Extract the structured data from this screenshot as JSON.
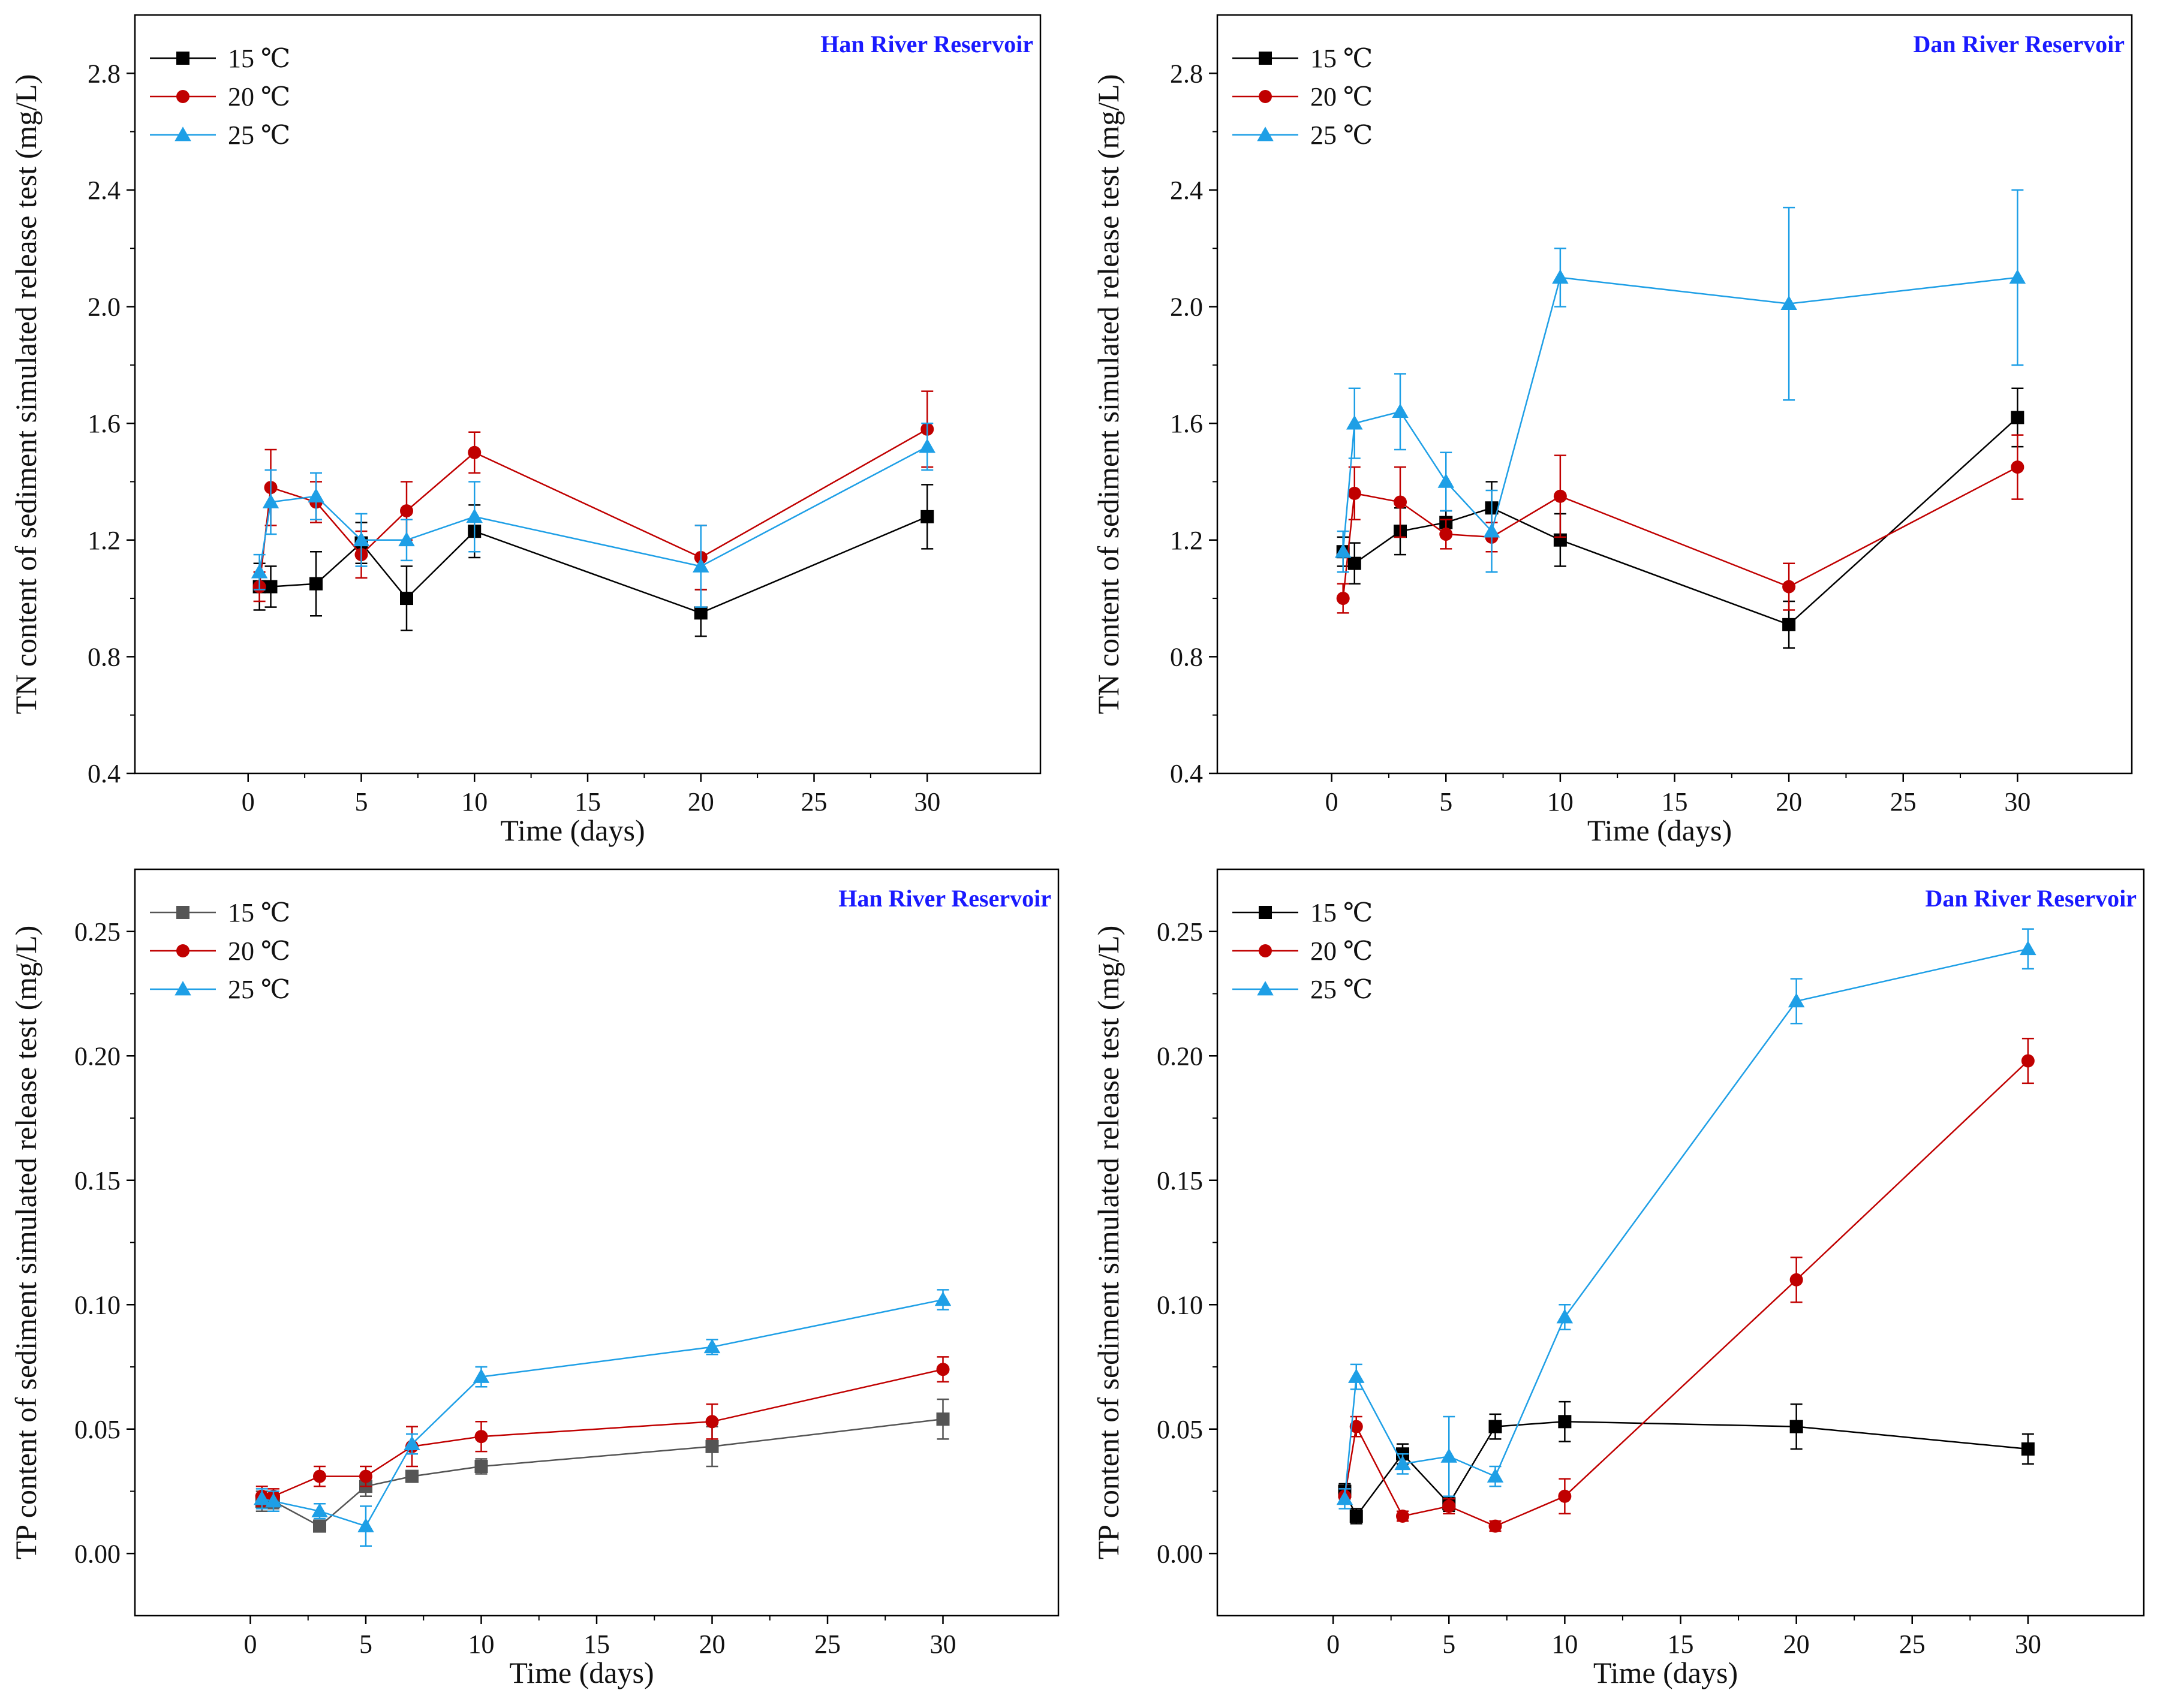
{
  "chart_data": [
    {
      "type": "line",
      "title": "Han River Reservoir",
      "xlabel": "Time (days)",
      "ylabel": "TN content of sediment simulated release test (mg/L)",
      "xlim": [
        -5,
        35
      ],
      "ylim": [
        0.4,
        3.0
      ],
      "xticks": [
        0,
        5,
        10,
        15,
        20,
        25,
        30
      ],
      "yticks": [
        0.4,
        0.8,
        1.2,
        1.6,
        2.0,
        2.4,
        2.8
      ],
      "tick_decimals": 1,
      "legend_position": "top-left",
      "title_color": "#1a1aff",
      "series": [
        {
          "name": "15 ℃",
          "color": "#000000",
          "marker": "square",
          "x": [
            0.5,
            1,
            3,
            5,
            7,
            10,
            20,
            30
          ],
          "y": [
            1.04,
            1.04,
            1.05,
            1.19,
            1.0,
            1.23,
            0.95,
            1.28
          ],
          "err": [
            0.08,
            0.07,
            0.11,
            0.07,
            0.11,
            0.09,
            0.08,
            0.11
          ]
        },
        {
          "name": "20 ℃",
          "color": "#c00000",
          "marker": "circle",
          "x": [
            0.5,
            1,
            3,
            5,
            7,
            10,
            20,
            30
          ],
          "y": [
            1.04,
            1.38,
            1.33,
            1.15,
            1.3,
            1.5,
            1.14,
            1.58
          ],
          "err": [
            0.05,
            0.13,
            0.07,
            0.08,
            0.1,
            0.07,
            0.11,
            0.13
          ]
        },
        {
          "name": "25 ℃",
          "color": "#1e9fe6",
          "marker": "triangle",
          "x": [
            0.5,
            1,
            3,
            5,
            7,
            10,
            20,
            30
          ],
          "y": [
            1.09,
            1.33,
            1.35,
            1.2,
            1.2,
            1.28,
            1.11,
            1.52
          ],
          "err": [
            0.06,
            0.11,
            0.08,
            0.09,
            0.07,
            0.12,
            0.14,
            0.08
          ]
        }
      ]
    },
    {
      "type": "line",
      "title": "Dan River Reservoir",
      "xlabel": "Time (days)",
      "ylabel": "TN content of sediment simulated release test (mg/L)",
      "xlim": [
        -5,
        35
      ],
      "ylim": [
        0.4,
        3.0
      ],
      "xticks": [
        0,
        5,
        10,
        15,
        20,
        25,
        30
      ],
      "yticks": [
        0.4,
        0.8,
        1.2,
        1.6,
        2.0,
        2.4,
        2.8
      ],
      "tick_decimals": 1,
      "legend_position": "top-left",
      "title_color": "#1a1aff",
      "series": [
        {
          "name": "15 ℃",
          "color": "#000000",
          "marker": "square",
          "x": [
            0.5,
            1,
            3,
            5,
            7,
            10,
            20,
            30
          ],
          "y": [
            1.16,
            1.12,
            1.23,
            1.26,
            1.31,
            1.2,
            0.91,
            1.62
          ],
          "err": [
            0.05,
            0.07,
            0.08,
            0.04,
            0.09,
            0.09,
            0.08,
            0.1
          ]
        },
        {
          "name": "20 ℃",
          "color": "#c00000",
          "marker": "circle",
          "x": [
            0.5,
            1,
            3,
            5,
            7,
            10,
            20,
            30
          ],
          "y": [
            1.0,
            1.36,
            1.33,
            1.22,
            1.21,
            1.35,
            1.04,
            1.45
          ],
          "err": [
            0.05,
            0.09,
            0.12,
            0.05,
            0.05,
            0.14,
            0.08,
            0.11
          ]
        },
        {
          "name": "25 ℃",
          "color": "#1e9fe6",
          "marker": "triangle",
          "x": [
            0.5,
            1,
            3,
            5,
            7,
            10,
            20,
            30
          ],
          "y": [
            1.16,
            1.6,
            1.64,
            1.4,
            1.23,
            2.1,
            2.01,
            2.1
          ],
          "err": [
            0.07,
            0.12,
            0.13,
            0.1,
            0.14,
            0.1,
            0.33,
            0.3
          ]
        }
      ]
    },
    {
      "type": "line",
      "title": "Han River Reservoir",
      "xlabel": "Time (days)",
      "ylabel": "TP content of sediment simulated release test (mg/L)",
      "xlim": [
        -5,
        35
      ],
      "ylim": [
        -0.025,
        0.275
      ],
      "xticks": [
        0,
        5,
        10,
        15,
        20,
        25,
        30
      ],
      "yticks": [
        0.0,
        0.05,
        0.1,
        0.15,
        0.2,
        0.25
      ],
      "tick_decimals": 2,
      "legend_position": "top-left",
      "title_color": "#1a1aff",
      "series": [
        {
          "name": "15 ℃",
          "color": "#555555",
          "marker": "square",
          "x": [
            0.5,
            1,
            3,
            5,
            7,
            10,
            20,
            30
          ],
          "y": [
            0.021,
            0.021,
            0.011,
            0.027,
            0.031,
            0.035,
            0.043,
            0.054
          ],
          "err": [
            0.004,
            0.003,
            0.002,
            0.004,
            0.002,
            0.003,
            0.008,
            0.008
          ]
        },
        {
          "name": "20 ℃",
          "color": "#c00000",
          "marker": "circle",
          "x": [
            0.5,
            1,
            3,
            5,
            7,
            10,
            20,
            30
          ],
          "y": [
            0.023,
            0.023,
            0.031,
            0.031,
            0.043,
            0.047,
            0.053,
            0.074
          ],
          "err": [
            0.004,
            0.003,
            0.004,
            0.004,
            0.008,
            0.006,
            0.007,
            0.005
          ]
        },
        {
          "name": "25 ℃",
          "color": "#1e9fe6",
          "marker": "triangle",
          "x": [
            0.5,
            1,
            3,
            5,
            7,
            10,
            20,
            30
          ],
          "y": [
            0.022,
            0.021,
            0.017,
            0.011,
            0.044,
            0.071,
            0.083,
            0.102
          ],
          "err": [
            0.004,
            0.004,
            0.003,
            0.008,
            0.004,
            0.004,
            0.003,
            0.004
          ]
        }
      ]
    },
    {
      "type": "line",
      "title": "Dan River Reservoir",
      "xlabel": "Time (days)",
      "ylabel": "TP content of sediment simulated release test (mg/L)",
      "xlim": [
        -5,
        35
      ],
      "ylim": [
        -0.025,
        0.275
      ],
      "xticks": [
        0,
        5,
        10,
        15,
        20,
        25,
        30
      ],
      "yticks": [
        0.0,
        0.05,
        0.1,
        0.15,
        0.2,
        0.25
      ],
      "tick_decimals": 2,
      "legend_position": "top-left",
      "title_color": "#1a1aff",
      "series": [
        {
          "name": "15 ℃",
          "color": "#000000",
          "marker": "square",
          "x": [
            0.5,
            1,
            3,
            5,
            7,
            10,
            20,
            30
          ],
          "y": [
            0.025,
            0.015,
            0.04,
            0.02,
            0.051,
            0.053,
            0.051,
            0.042
          ],
          "err": [
            0.003,
            0.003,
            0.004,
            0.003,
            0.005,
            0.008,
            0.009,
            0.006
          ]
        },
        {
          "name": "20 ℃",
          "color": "#c00000",
          "marker": "circle",
          "x": [
            0.5,
            1,
            3,
            5,
            7,
            10,
            20,
            30
          ],
          "y": [
            0.023,
            0.051,
            0.015,
            0.019,
            0.011,
            0.023,
            0.11,
            0.198
          ],
          "err": [
            0.003,
            0.004,
            0.002,
            0.003,
            0.002,
            0.007,
            0.009,
            0.009
          ]
        },
        {
          "name": "25 ℃",
          "color": "#1e9fe6",
          "marker": "triangle",
          "x": [
            0.5,
            1,
            3,
            5,
            7,
            10,
            20,
            30
          ],
          "y": [
            0.022,
            0.071,
            0.036,
            0.039,
            0.031,
            0.095,
            0.222,
            0.243
          ],
          "err": [
            0.004,
            0.005,
            0.004,
            0.016,
            0.004,
            0.005,
            0.009,
            0.008
          ]
        }
      ]
    }
  ]
}
